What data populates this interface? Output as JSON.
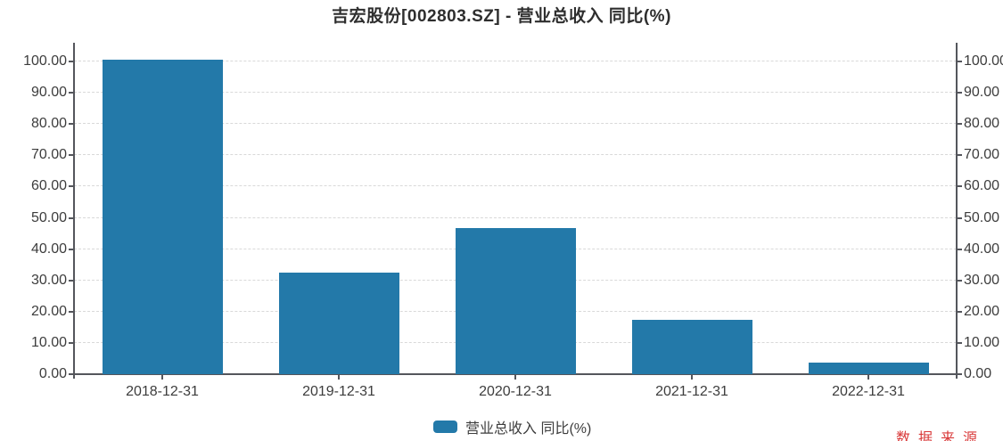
{
  "title": "吉宏股份[002803.SZ] - 营业总收入 同比(%)",
  "legend": {
    "label": "营业总收入 同比(%)"
  },
  "watermark": "数据来源",
  "colors": {
    "bar": "#2379a9",
    "axis_line": "#54565c",
    "grid_line": "#d9d9d9",
    "tick_label": "#3d3d3d",
    "title_text": "#2e2e2e",
    "watermark_text": "#d93a3a",
    "background": "#ffffff"
  },
  "chart_data": {
    "type": "bar",
    "title": "吉宏股份[002803.SZ] - 营业总收入 同比(%)",
    "categories": [
      "2018-12-31",
      "2019-12-31",
      "2020-12-31",
      "2021-12-31",
      "2022-12-31"
    ],
    "series": [
      {
        "name": "营业总收入 同比(%)",
        "values": [
          100.5,
          32.5,
          46.7,
          17.5,
          3.8
        ]
      }
    ],
    "xlabel": "",
    "ylabel": "",
    "ylim": [
      0,
      100
    ],
    "y_tick_values": [
      0,
      10,
      20,
      30,
      40,
      50,
      60,
      70,
      80,
      90,
      100
    ],
    "y_tick_labels": [
      "0.00",
      "10.00",
      "20.00",
      "30.00",
      "40.00",
      "50.00",
      "60.00",
      "70.00",
      "80.00",
      "90.00",
      "100.00"
    ],
    "dual_y_axis": true,
    "grid": true,
    "grid_style": "dashed",
    "legend_position": "bottom"
  }
}
